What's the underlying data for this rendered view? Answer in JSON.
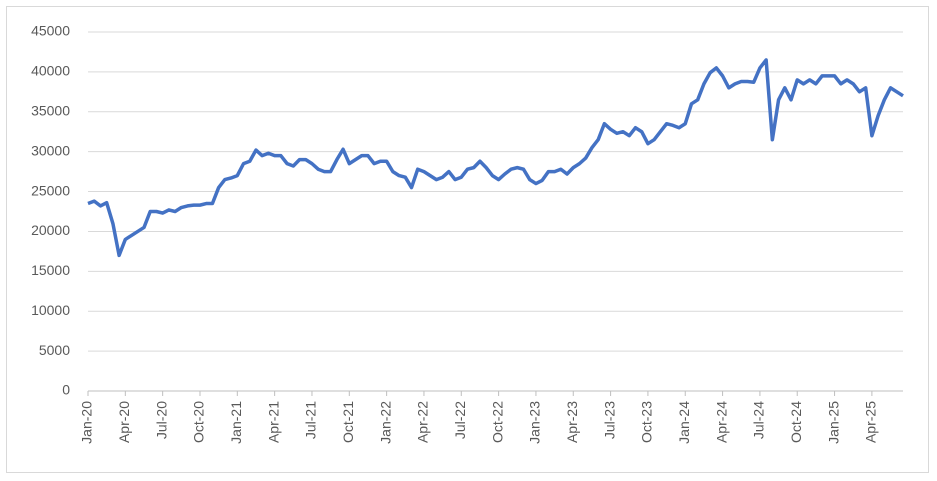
{
  "chart_data": {
    "type": "line",
    "categories": [
      "Jan-20",
      null,
      null,
      null,
      null,
      null,
      "Apr-20",
      null,
      null,
      null,
      null,
      null,
      "Jul-20",
      null,
      null,
      null,
      null,
      null,
      "Oct-20",
      null,
      null,
      null,
      null,
      null,
      "Jan-21",
      null,
      null,
      null,
      null,
      null,
      "Apr-21",
      null,
      null,
      null,
      null,
      null,
      "Jul-21",
      null,
      null,
      null,
      null,
      null,
      "Oct-21",
      null,
      null,
      null,
      null,
      null,
      "Jan-22",
      null,
      null,
      null,
      null,
      null,
      "Apr-22",
      null,
      null,
      null,
      null,
      null,
      "Jul-22",
      null,
      null,
      null,
      null,
      null,
      "Oct-22",
      null,
      null,
      null,
      null,
      null,
      "Jan-23",
      null,
      null,
      null,
      null,
      null,
      "Apr-23",
      null,
      null,
      null,
      null,
      null,
      "Jul-23",
      null,
      null,
      null,
      null,
      null,
      "Oct-23",
      null,
      null,
      null,
      null,
      null,
      "Jan-24",
      null,
      null,
      null,
      null,
      null,
      "Apr-24",
      null,
      null,
      null,
      null,
      null,
      "Jul-24",
      null,
      null,
      null,
      null,
      null,
      "Oct-24",
      null,
      null,
      null,
      null,
      null,
      "Jan-25",
      null,
      null,
      null,
      null,
      null,
      "Apr-25",
      null,
      null,
      null,
      null,
      null
    ],
    "series": [
      {
        "color": "#4472c4",
        "values": [
          23500,
          23800,
          23200,
          23600,
          21000,
          17000,
          19000,
          19500,
          20000,
          20500,
          22500,
          22500,
          22300,
          22700,
          22500,
          23000,
          23200,
          23300,
          23300,
          23500,
          23500,
          25500,
          26500,
          26700,
          27000,
          28500,
          28800,
          30200,
          29500,
          29800,
          29500,
          29500,
          28500,
          28200,
          29000,
          29000,
          28500,
          27800,
          27500,
          27500,
          29000,
          30300,
          28500,
          29000,
          29500,
          29500,
          28500,
          28800,
          28800,
          27500,
          27000,
          26800,
          25500,
          27800,
          27500,
          27000,
          26500,
          26800,
          27500,
          26500,
          26800,
          27800,
          28000,
          28800,
          28000,
          27000,
          26500,
          27200,
          27800,
          28000,
          27800,
          26500,
          26000,
          26400,
          27500,
          27500,
          27800,
          27200,
          28000,
          28500,
          29200,
          30500,
          31500,
          33500,
          32800,
          32300,
          32500,
          32000,
          33000,
          32500,
          31000,
          31500,
          32500,
          33500,
          33300,
          33000,
          33500,
          36000,
          36500,
          38500,
          39900,
          40500,
          39500,
          38000,
          38500,
          38800,
          38800,
          38700,
          40500,
          41500,
          31500,
          36500,
          38000,
          36500,
          39000,
          38500,
          39000,
          38500,
          39500,
          39500,
          39500,
          38500,
          39000,
          38500,
          37500,
          38000,
          32000,
          34500,
          36500,
          38000,
          37500,
          37000
        ]
      }
    ],
    "ylim": [
      0,
      45000
    ],
    "yticks": [
      0,
      5000,
      10000,
      15000,
      20000,
      25000,
      30000,
      35000,
      40000,
      45000
    ],
    "grid": true
  }
}
